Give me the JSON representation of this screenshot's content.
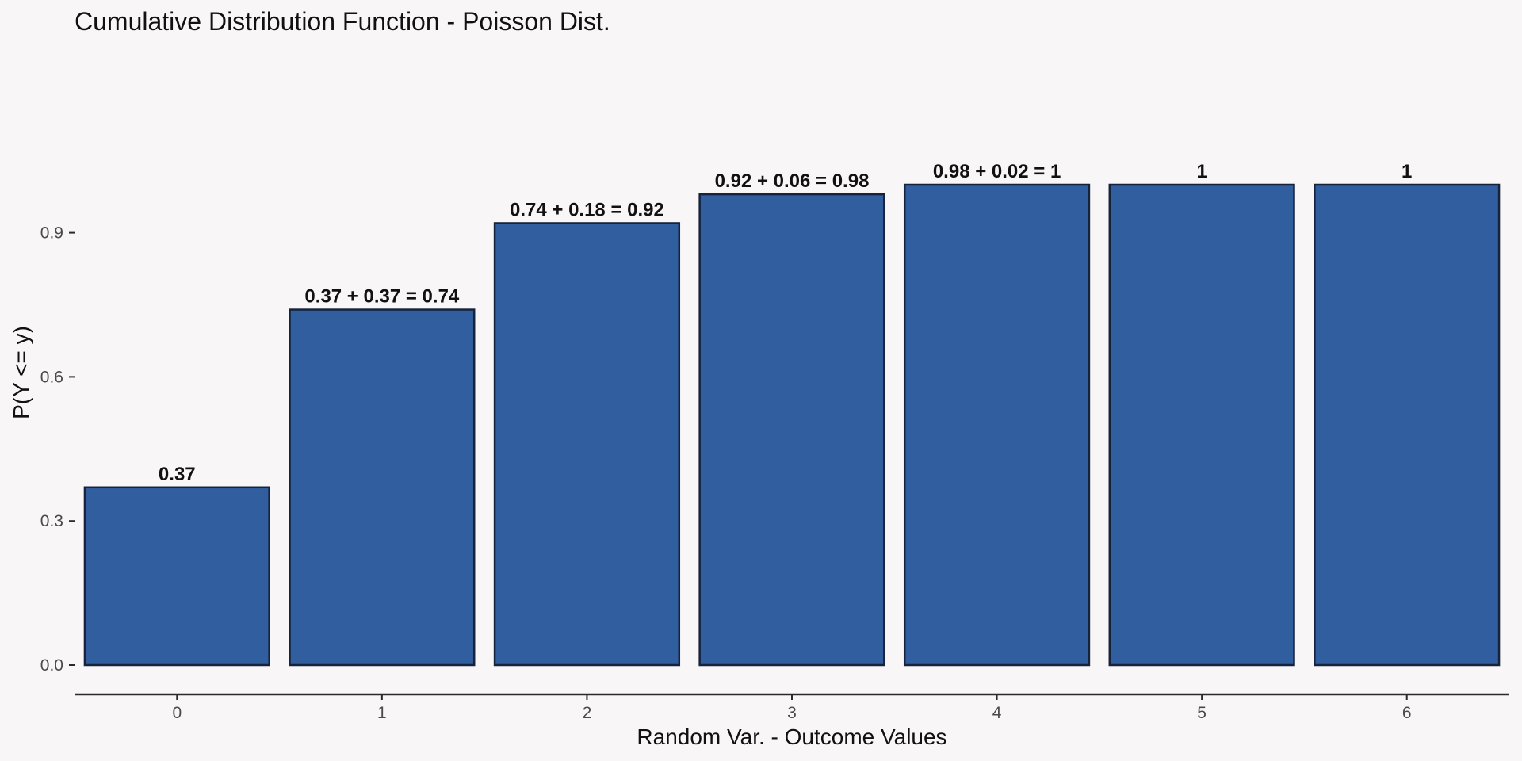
{
  "chart_data": {
    "type": "bar",
    "title": "Cumulative Distribution Function - Poisson Dist.",
    "xlabel": "Random Var. - Outcome Values",
    "ylabel": "P(Y <= y)",
    "categories": [
      "0",
      "1",
      "2",
      "3",
      "4",
      "5",
      "6"
    ],
    "values": [
      0.37,
      0.74,
      0.92,
      0.98,
      1.0,
      1.0,
      1.0
    ],
    "data_labels": [
      "0.37",
      "0.37 + 0.37 = 0.74",
      "0.74 + 0.18 = 0.92",
      "0.92 + 0.06 = 0.98",
      "0.98 + 0.02 = 1",
      "1",
      "1"
    ],
    "yticks": [
      0.0,
      0.3,
      0.6,
      0.9
    ],
    "ytick_labels": [
      "0.0",
      "0.3",
      "0.6",
      "0.9"
    ],
    "ylim": [
      0,
      1.05
    ],
    "grid": false,
    "legend": "none",
    "colors": {
      "bar_fill": "#315e9e",
      "bar_stroke": "#16233d",
      "background": "#f8f6f6",
      "axis": "#2a2a2a"
    }
  }
}
